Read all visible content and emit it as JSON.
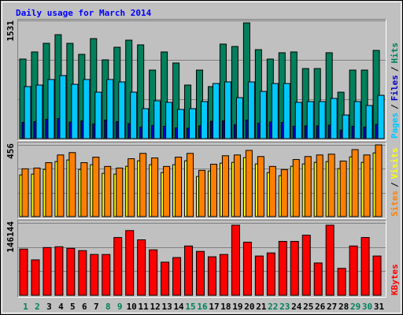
{
  "title": "Daily usage for March 2014",
  "title_color": "#0000ff",
  "legend_separator": "/",
  "chart_data": [
    {
      "type": "bar",
      "series": [
        {
          "name": "Pages",
          "color": "#00c8ff",
          "values": [
            674,
            694,
            766,
            817,
            704,
            766,
            602,
            766,
            735,
            602,
            388,
            490,
            470,
            378,
            388,
            480,
            714,
            735,
            531,
            735,
            612,
            714,
            714,
            470,
            480,
            480,
            521,
            306,
            480,
            429,
            561
          ]
        },
        {
          "name": "Files",
          "color": "#0000c8",
          "values": [
            210,
            220,
            250,
            260,
            215,
            230,
            190,
            240,
            220,
            195,
            150,
            170,
            160,
            140,
            135,
            165,
            225,
            230,
            180,
            240,
            200,
            215,
            210,
            160,
            165,
            165,
            175,
            110,
            160,
            150,
            185
          ]
        },
        {
          "name": "Hits",
          "color": "#00805c",
          "values": [
            1031,
            1123,
            1235,
            1347,
            1235,
            1092,
            1296,
            1021,
            1184,
            1276,
            1215,
            888,
            1123,
            980,
            694,
            888,
            674,
            1225,
            1194,
            1500,
            1153,
            1031,
            1113,
            1123,
            908,
            908,
            1113,
            602,
            888,
            888,
            1143
          ]
        }
      ],
      "ylim": [
        0,
        1531
      ],
      "yticks": [
        1531
      ]
    },
    {
      "type": "bar",
      "series": [
        {
          "name": "Sites",
          "color": "#ff8000",
          "values": [
            304,
            309,
            343,
            392,
            407,
            343,
            378,
            319,
            309,
            368,
            402,
            373,
            319,
            378,
            402,
            294,
            333,
            387,
            392,
            421,
            382,
            319,
            299,
            363,
            382,
            392,
            397,
            353,
            426,
            392,
            456
          ]
        },
        {
          "name": "Visits",
          "color": "#ffff00",
          "values": [
            265,
            270,
            300,
            350,
            360,
            300,
            330,
            275,
            270,
            320,
            355,
            330,
            280,
            330,
            355,
            255,
            290,
            340,
            345,
            375,
            335,
            280,
            260,
            320,
            335,
            345,
            350,
            305,
            380,
            345,
            405
          ]
        }
      ],
      "ylim": [
        0,
        456
      ],
      "yticks": [
        456
      ]
    },
    {
      "type": "bar",
      "series": [
        {
          "name": "KBytes",
          "color": "#ff0000",
          "values": [
            93282,
            71516,
            96391,
            97946,
            94837,
            90173,
            82399,
            82399,
            116603,
            130595,
            111938,
            91727,
            66852,
            76180,
            99501,
            88618,
            77735,
            82399,
            141478,
            107274,
            79290,
            85509,
            108829,
            108829,
            121267,
            65297,
            141478,
            54415,
            99501,
            116603,
            79290
          ]
        }
      ],
      "ylim": [
        0,
        146144
      ],
      "yticks": [
        146144
      ],
      "categories": [
        "1",
        "2",
        "3",
        "4",
        "5",
        "6",
        "7",
        "8",
        "9",
        "10",
        "11",
        "12",
        "13",
        "14",
        "15",
        "16",
        "17",
        "18",
        "19",
        "20",
        "21",
        "22",
        "23",
        "24",
        "25",
        "26",
        "27",
        "28",
        "29",
        "30",
        "31"
      ],
      "category_colors": [
        "#00805c",
        "#00805c",
        "#000000",
        "#000000",
        "#000000",
        "#000000",
        "#000000",
        "#00805c",
        "#00805c",
        "#000000",
        "#000000",
        "#000000",
        "#000000",
        "#000000",
        "#00805c",
        "#00805c",
        "#000000",
        "#000000",
        "#000000",
        "#000000",
        "#000000",
        "#00805c",
        "#00805c",
        "#000000",
        "#000000",
        "#000000",
        "#000000",
        "#000000",
        "#00805c",
        "#00805c",
        "#000000"
      ]
    }
  ]
}
